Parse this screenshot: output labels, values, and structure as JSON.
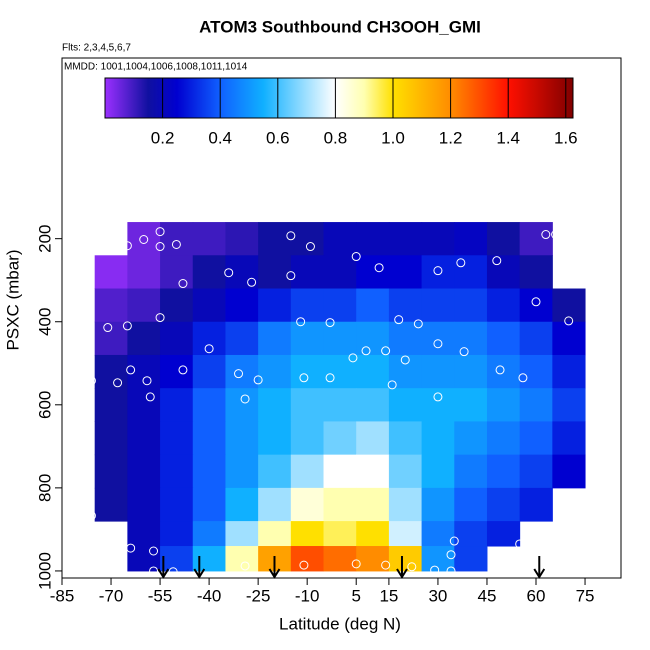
{
  "chart_data": {
    "type": "heatmap",
    "title": "ATOM3 Southbound CH3OOH_GMI",
    "subtitle": "Flts: 2,3,4,5,6,7",
    "annotation": "MMDD: 1001,1004,1006,1008,1011,1014",
    "x_label": "Latitude (deg N)",
    "y_label": "PSXC (mbar)",
    "xlim": [
      -85,
      86
    ],
    "xticks": [
      -85,
      -70,
      -55,
      -40,
      -25,
      -10,
      5,
      15,
      30,
      45,
      60,
      75
    ],
    "ylim": [
      -235,
      1017
    ],
    "y_inverted": true,
    "yticks": [
      200,
      400,
      600,
      800,
      1000
    ],
    "x_edges": [
      -75,
      -65,
      -55,
      -45,
      -35,
      -25,
      -15,
      -5,
      5,
      15,
      25,
      35,
      45,
      55,
      65,
      75
    ],
    "y_edges": [
      160,
      240,
      320,
      400,
      480,
      560,
      640,
      720,
      800,
      880,
      940,
      1000
    ],
    "z": [
      [
        null,
        0.05,
        0.1,
        0.1,
        0.12,
        0.15,
        0.15,
        0.2,
        0.2,
        0.2,
        0.2,
        0.22,
        0.15,
        0.1,
        null
      ],
      [
        0.02,
        0.05,
        0.1,
        0.15,
        0.2,
        0.15,
        0.2,
        0.2,
        0.25,
        0.25,
        0.3,
        0.3,
        0.2,
        0.15,
        null
      ],
      [
        0.08,
        0.1,
        0.15,
        0.2,
        0.25,
        0.3,
        0.35,
        0.35,
        0.4,
        0.35,
        0.35,
        0.35,
        0.3,
        0.25,
        0.15
      ],
      [
        0.1,
        0.15,
        0.2,
        0.3,
        0.35,
        0.45,
        0.5,
        0.5,
        0.5,
        0.45,
        0.45,
        0.45,
        0.4,
        0.35,
        0.25
      ],
      [
        0.15,
        0.2,
        0.25,
        0.35,
        0.45,
        0.5,
        0.55,
        0.55,
        0.55,
        0.5,
        0.5,
        0.5,
        0.45,
        0.4,
        0.3
      ],
      [
        0.15,
        0.2,
        0.3,
        0.4,
        0.5,
        0.55,
        0.6,
        0.6,
        0.6,
        0.55,
        0.55,
        0.55,
        0.5,
        0.45,
        0.35
      ],
      [
        0.15,
        0.2,
        0.3,
        0.4,
        0.5,
        0.55,
        0.6,
        0.65,
        0.7,
        0.6,
        0.55,
        0.5,
        0.45,
        0.4,
        0.3
      ],
      [
        0.15,
        0.2,
        0.3,
        0.4,
        0.5,
        0.6,
        0.7,
        0.8,
        0.8,
        0.65,
        0.55,
        0.45,
        0.4,
        0.35,
        0.25
      ],
      [
        0.15,
        0.2,
        0.3,
        0.4,
        0.55,
        0.7,
        0.85,
        0.9,
        0.9,
        0.7,
        0.5,
        0.4,
        0.35,
        0.3,
        null
      ],
      [
        null,
        0.2,
        0.3,
        0.45,
        0.7,
        0.9,
        1.0,
        0.95,
        1.0,
        0.75,
        0.45,
        0.35,
        0.3,
        null,
        null
      ],
      [
        null,
        0.2,
        0.35,
        0.55,
        0.9,
        1.15,
        1.3,
        1.25,
        1.2,
        1.05,
        0.5,
        0.35,
        null,
        null,
        null
      ]
    ],
    "colorscale": [
      [
        0,
        "#9b30ff"
      ],
      [
        0.15,
        "#1010a0"
      ],
      [
        0.25,
        "#0000d0"
      ],
      [
        0.4,
        "#1060ff"
      ],
      [
        0.55,
        "#10b0ff"
      ],
      [
        0.7,
        "#a0e0ff"
      ],
      [
        0.8,
        "#ffffff"
      ],
      [
        0.9,
        "#ffffb0"
      ],
      [
        1.0,
        "#ffe000"
      ],
      [
        1.2,
        "#ff8c00"
      ],
      [
        1.4,
        "#ff1000"
      ],
      [
        1.625,
        "#800000"
      ]
    ],
    "clim": [
      0,
      1.625
    ],
    "cticks": [
      0.2,
      0.4,
      0.6,
      0.8,
      {
        "value": 1,
        "label": "1.0"
      },
      1.2,
      1.4,
      1.6
    ],
    "points": {
      "x": [
        -80,
        -74,
        -67,
        -65,
        -60,
        -55,
        -50,
        -55,
        -15,
        -9,
        5,
        12,
        30,
        37,
        48,
        63,
        66,
        60,
        70,
        -80,
        -71,
        -65,
        -55,
        -48,
        -34,
        -27,
        -15,
        -12,
        -3,
        18,
        8,
        4,
        14,
        24,
        -40,
        -48,
        -64,
        -68,
        -59,
        -76,
        -58,
        -31,
        -25,
        -11,
        -3,
        20,
        30,
        38,
        49,
        56,
        16,
        30,
        -29,
        72,
        -76,
        55,
        35,
        34,
        22,
        -64,
        -57,
        -69,
        -29,
        -11,
        5,
        14,
        29,
        34,
        47,
        -51,
        -57
      ],
      "y": [
        217,
        217,
        217,
        217,
        202,
        219,
        214,
        183,
        193,
        219,
        243,
        270,
        277,
        258,
        253,
        190,
        190,
        352,
        398,
        359,
        414,
        410,
        390,
        308,
        282,
        305,
        289,
        400,
        402,
        395,
        470,
        487,
        470,
        405,
        465,
        516,
        516,
        547,
        542,
        542,
        581,
        525,
        540,
        535,
        535,
        492,
        453,
        472,
        516,
        535,
        552,
        581,
        586,
        853,
        867,
        935,
        928,
        961,
        990,
        945,
        952,
        952,
        988,
        986,
        983,
        986,
        998,
        1000,
        1000,
        1002,
        1000
      ]
    },
    "point_color": "#ffffff",
    "arrows": [
      -54,
      -43,
      -20,
      19,
      61
    ]
  }
}
